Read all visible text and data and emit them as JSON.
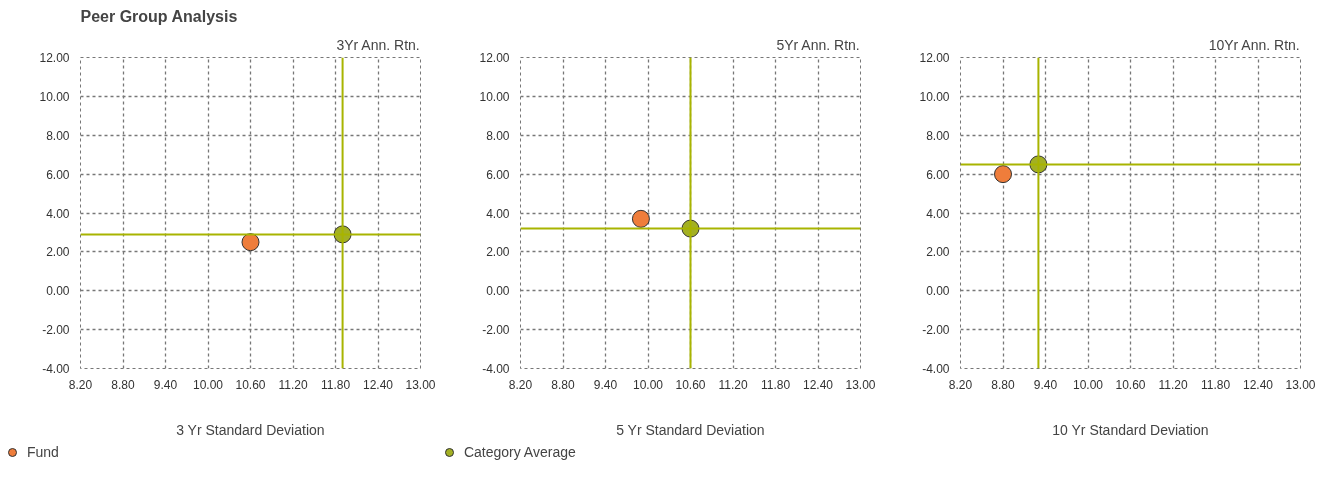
{
  "chart_data": [
    {
      "type": "scatter",
      "title": "Peer Group Analysis",
      "ylabel": "3Yr Ann. Rtn.",
      "xlabel": "3 Yr Standard Deviation",
      "xlim": [
        8.2,
        13.0
      ],
      "ylim": [
        -4,
        12
      ],
      "xticks": [
        {
          "value": 8.2,
          "label": "8.20"
        },
        {
          "value": 8.8,
          "label": "8.80"
        },
        {
          "value": 9.4,
          "label": "9.40"
        },
        {
          "value": 10.0,
          "label": "10.00"
        },
        {
          "value": 10.6,
          "label": "10.60"
        },
        {
          "value": 11.2,
          "label": "11.20"
        },
        {
          "value": 11.8,
          "label": "11.80"
        },
        {
          "value": 12.4,
          "label": "12.40"
        },
        {
          "value": 13.0,
          "label": "13.00"
        }
      ],
      "yticks": [
        {
          "value": -4,
          "label": "-4.00"
        },
        {
          "value": -2,
          "label": "-2.00"
        },
        {
          "value": 0,
          "label": "0.00"
        },
        {
          "value": 2,
          "label": "2.00"
        },
        {
          "value": 4,
          "label": "4.00"
        },
        {
          "value": 6,
          "label": "6.00"
        },
        {
          "value": 8,
          "label": "8.00"
        },
        {
          "value": 10,
          "label": "10.00"
        },
        {
          "value": 12,
          "label": "12.00"
        }
      ],
      "series": [
        {
          "name": "Fund",
          "color": "#ef7d3b",
          "x": [
            10.6
          ],
          "values": [
            2.5
          ]
        },
        {
          "name": "Category Average",
          "color": "#a3b023",
          "x": [
            11.9
          ],
          "values": [
            2.9
          ]
        }
      ],
      "ref_lines": [
        {
          "axis": "x",
          "value": 11.9,
          "color": "#a8b400"
        },
        {
          "axis": "y",
          "value": 2.9,
          "color": "#a8b400"
        }
      ],
      "grid": true,
      "marker": "circle",
      "legend": "bottom"
    },
    {
      "type": "scatter",
      "ylabel": "5Yr Ann. Rtn.",
      "xlabel": "5 Yr Standard Deviation",
      "xlim": [
        8.2,
        13.0
      ],
      "ylim": [
        -4,
        12
      ],
      "xticks": [
        {
          "value": 8.2,
          "label": "8.20"
        },
        {
          "value": 8.8,
          "label": "8.80"
        },
        {
          "value": 9.4,
          "label": "9.40"
        },
        {
          "value": 10.0,
          "label": "10.00"
        },
        {
          "value": 10.6,
          "label": "10.60"
        },
        {
          "value": 11.2,
          "label": "11.20"
        },
        {
          "value": 11.8,
          "label": "11.80"
        },
        {
          "value": 12.4,
          "label": "12.40"
        },
        {
          "value": 13.0,
          "label": "13.00"
        }
      ],
      "yticks": [
        {
          "value": -4,
          "label": "-4.00"
        },
        {
          "value": -2,
          "label": "-2.00"
        },
        {
          "value": 0,
          "label": "0.00"
        },
        {
          "value": 2,
          "label": "2.00"
        },
        {
          "value": 4,
          "label": "4.00"
        },
        {
          "value": 6,
          "label": "6.00"
        },
        {
          "value": 8,
          "label": "8.00"
        },
        {
          "value": 10,
          "label": "10.00"
        },
        {
          "value": 12,
          "label": "12.00"
        }
      ],
      "series": [
        {
          "color": "#ef7d3b",
          "x": [
            9.9
          ],
          "values": [
            3.7
          ]
        },
        {
          "color": "#a3b023",
          "x": [
            10.6
          ],
          "values": [
            3.2
          ]
        }
      ],
      "ref_lines": [
        {
          "axis": "x",
          "value": 10.6,
          "color": "#a8b400"
        },
        {
          "axis": "y",
          "value": 3.2,
          "color": "#a8b400"
        }
      ],
      "grid": true,
      "marker": "circle"
    },
    {
      "type": "scatter",
      "ylabel": "10Yr Ann. Rtn.",
      "xlabel": "10 Yr Standard Deviation",
      "xlim": [
        8.2,
        13.0
      ],
      "ylim": [
        -4,
        12
      ],
      "xticks": [
        {
          "value": 8.2,
          "label": "8.20"
        },
        {
          "value": 8.8,
          "label": "8.80"
        },
        {
          "value": 9.4,
          "label": "9.40"
        },
        {
          "value": 10.0,
          "label": "10.00"
        },
        {
          "value": 10.6,
          "label": "10.60"
        },
        {
          "value": 11.2,
          "label": "11.20"
        },
        {
          "value": 11.8,
          "label": "11.80"
        },
        {
          "value": 12.4,
          "label": "12.40"
        },
        {
          "value": 13.0,
          "label": "13.00"
        }
      ],
      "yticks": [
        {
          "value": -4,
          "label": "-4.00"
        },
        {
          "value": -2,
          "label": "-2.00"
        },
        {
          "value": 0,
          "label": "0.00"
        },
        {
          "value": 2,
          "label": "2.00"
        },
        {
          "value": 4,
          "label": "4.00"
        },
        {
          "value": 6,
          "label": "6.00"
        },
        {
          "value": 8,
          "label": "8.00"
        },
        {
          "value": 10,
          "label": "10.00"
        },
        {
          "value": 12,
          "label": "12.00"
        }
      ],
      "series": [
        {
          "color": "#ef7d3b",
          "x": [
            8.8
          ],
          "values": [
            6.0
          ]
        },
        {
          "color": "#a3b023",
          "x": [
            9.3
          ],
          "values": [
            6.5
          ]
        }
      ],
      "ref_lines": [
        {
          "axis": "x",
          "value": 9.3,
          "color": "#a8b400"
        },
        {
          "axis": "y",
          "value": 6.5,
          "color": "#a8b400"
        }
      ],
      "grid": true,
      "marker": "circle"
    }
  ]
}
